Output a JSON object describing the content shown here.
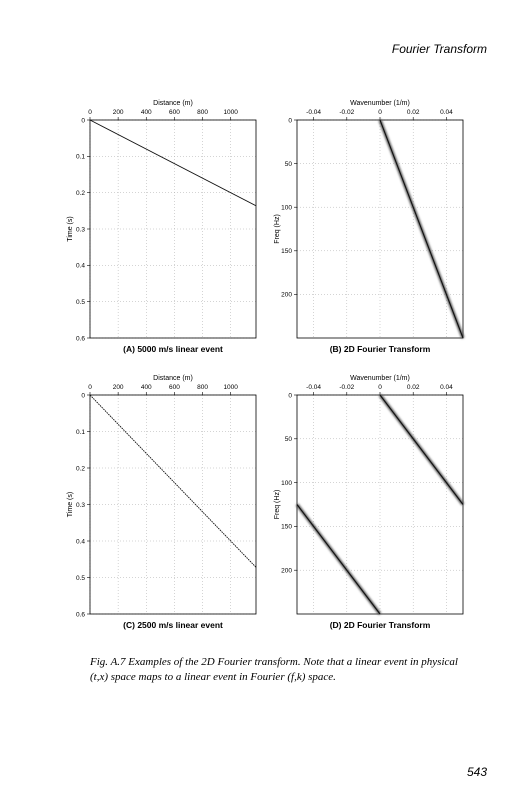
{
  "page": {
    "running_head": "Fourier Transform",
    "page_number": "543",
    "caption": "Fig. A.7 Examples of the 2D Fourier transform. Note that a linear event in physical (t,x) space maps to a linear event in Fourier (f,k) space."
  },
  "chart_data": [
    {
      "type": "line",
      "title": "(A) 5000 m/s linear event",
      "xlabel": "Distance (m)",
      "ylabel": "Time (s)",
      "xticks": [
        "0",
        "200",
        "400",
        "600",
        "800",
        "1000"
      ],
      "yticks": [
        "0",
        "0.1",
        "0.2",
        "0.3",
        "0.4",
        "0.5",
        "0.6"
      ],
      "xlim": [
        0,
        1180
      ],
      "ylim": [
        0,
        0.6
      ],
      "grid": true,
      "style": "solid",
      "segments": [
        {
          "x": [
            0,
            1180
          ],
          "y": [
            0,
            0.236
          ]
        }
      ]
    },
    {
      "type": "line",
      "title": "(B) 2D Fourier Transform",
      "xlabel": "Wavenumber (1/m)",
      "ylabel": "Freq (Hz)",
      "xticks": [
        "-0.04",
        "-0.02",
        "0",
        "0.02",
        "0.04"
      ],
      "yticks": [
        "0",
        "50",
        "100",
        "150",
        "200"
      ],
      "xlim": [
        -0.05,
        0.05
      ],
      "ylim": [
        0,
        250
      ],
      "grid": true,
      "style": "blurred",
      "segments": [
        {
          "x": [
            0,
            0.05
          ],
          "y": [
            0,
            250
          ]
        }
      ]
    },
    {
      "type": "line",
      "title": "(C) 2500 m/s linear event",
      "xlabel": "Distance (m)",
      "ylabel": "Time (s)",
      "xticks": [
        "0",
        "200",
        "400",
        "600",
        "800",
        "1000"
      ],
      "yticks": [
        "0",
        "0.1",
        "0.2",
        "0.3",
        "0.4",
        "0.5",
        "0.6"
      ],
      "xlim": [
        0,
        1180
      ],
      "ylim": [
        0,
        0.6
      ],
      "grid": true,
      "style": "dashed",
      "segments": [
        {
          "x": [
            0,
            1180
          ],
          "y": [
            0,
            0.472
          ]
        }
      ]
    },
    {
      "type": "line",
      "title": "(D) 2D Fourier Transform",
      "xlabel": "Wavenumber (1/m)",
      "ylabel": "Freq (Hz)",
      "xticks": [
        "-0.04",
        "-0.02",
        "0",
        "0.02",
        "0.04"
      ],
      "yticks": [
        "0",
        "50",
        "100",
        "150",
        "200"
      ],
      "xlim": [
        -0.05,
        0.05
      ],
      "ylim": [
        0,
        250
      ],
      "grid": true,
      "style": "blurred",
      "segments": [
        {
          "x": [
            0,
            0.05
          ],
          "y": [
            0,
            125
          ]
        },
        {
          "x": [
            -0.05,
            0
          ],
          "y": [
            125,
            250
          ]
        }
      ]
    }
  ]
}
